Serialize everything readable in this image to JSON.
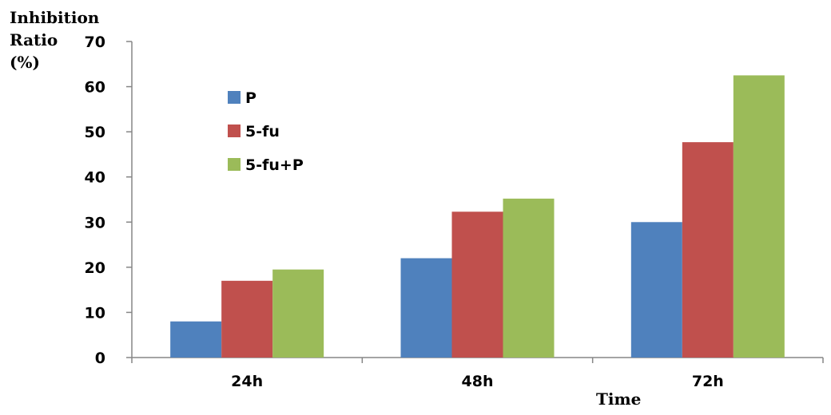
{
  "chart_data": {
    "type": "bar",
    "title": "",
    "ylabel_lines": [
      "Inhibition",
      "Ratio",
      "(%)"
    ],
    "xlabel": "Time",
    "categories": [
      "24h",
      "48h",
      "72h"
    ],
    "series": [
      {
        "name": "P",
        "color": "#4F81BD",
        "values": [
          8,
          22,
          30
        ]
      },
      {
        "name": "5-fu",
        "color": "#C0504D",
        "values": [
          17,
          32.3,
          47.7
        ]
      },
      {
        "name": "5-fu+P",
        "color": "#9BBB59",
        "values": [
          19.5,
          35.2,
          62.5
        ]
      }
    ],
    "ylim": [
      0,
      70
    ],
    "yticks": [
      0,
      10,
      20,
      30,
      40,
      50,
      60,
      70
    ],
    "grid": false,
    "legend_position": "top-left"
  }
}
